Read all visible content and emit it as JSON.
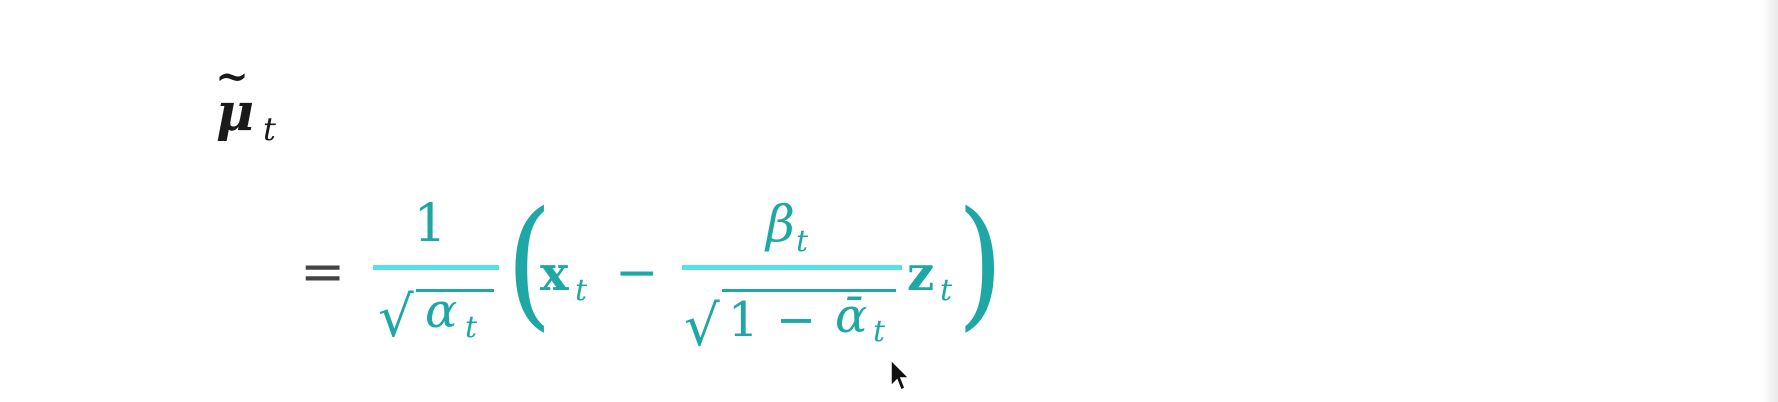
{
  "formula": {
    "lhs": {
      "symbol": "μ",
      "accent": "~",
      "subscript": "t"
    },
    "equals": "=",
    "factor": {
      "numerator": "1",
      "radical": "√",
      "denominator_symbol": "α",
      "denominator_subscript": "t"
    },
    "open_paren": "(",
    "x_symbol": "x",
    "x_subscript": "t",
    "minus": "−",
    "inner_fraction": {
      "numerator_symbol": "β",
      "numerator_subscript": "t",
      "radical": "√",
      "denominator_one": "1",
      "denominator_minus": "−",
      "denominator_symbol": "ᾱ",
      "denominator_subscript": "t"
    },
    "z_symbol": "z",
    "z_subscript": "t",
    "close_paren": ")"
  },
  "colors": {
    "formula_teal": "#1fa7a6",
    "fraction_bar": "#55e2e4",
    "ink": "#1a1a1a"
  },
  "icons": {
    "cursor": "mouse-pointer-icon"
  }
}
